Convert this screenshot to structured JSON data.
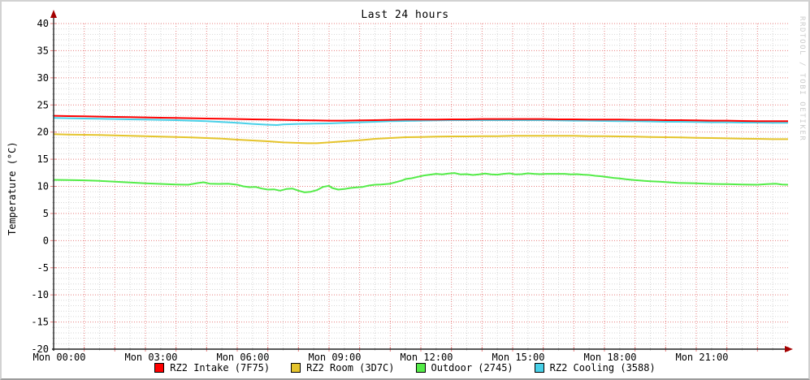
{
  "title": "Last 24 hours",
  "ylabel": "Temperature (°C)",
  "watermark": "RRDTOOL / TOBI OETIKER",
  "colors": {
    "intake": "#ff0000",
    "room": "#e5c42c",
    "outdoor": "#54ec48",
    "cooling": "#48d0e8",
    "grid_major": "#e87f7f",
    "grid_minor": "#d6d6d6",
    "axis": "#222222",
    "arrow": "#a40000",
    "watermark_gray": "#cccccc"
  },
  "chart_data": {
    "type": "line",
    "title": "Last 24 hours",
    "xlabel": "",
    "ylabel": "Temperature (°C)",
    "ylim": [
      -20,
      40
    ],
    "xlim_hours": [
      0,
      24
    ],
    "y_ticks": [
      40,
      35,
      30,
      25,
      20,
      15,
      10,
      5,
      0,
      -5,
      -10,
      -15,
      -20
    ],
    "x_tick_hours": [
      0,
      3,
      6,
      9,
      12,
      15,
      18,
      21
    ],
    "x_tick_labels": [
      "Mon 00:00",
      "Mon 03:00",
      "Mon 06:00",
      "Mon 09:00",
      "Mon 12:00",
      "Mon 15:00",
      "Mon 18:00",
      "Mon 21:00"
    ],
    "grid": {
      "major_x_hours": 1,
      "minor_x_hours": 0.5,
      "major_y": 5,
      "minor_y": 1,
      "style": "dotted",
      "legend_position": "bottom"
    },
    "series": [
      {
        "name": "Outdoor (2745)",
        "color": "#54ec48",
        "points": [
          [
            0,
            11.2
          ],
          [
            0.5,
            11.15
          ],
          [
            1,
            11.1
          ],
          [
            1.5,
            11.0
          ],
          [
            2,
            10.85
          ],
          [
            2.5,
            10.7
          ],
          [
            3,
            10.55
          ],
          [
            3.5,
            10.45
          ],
          [
            4,
            10.35
          ],
          [
            4.4,
            10.3
          ],
          [
            4.7,
            10.6
          ],
          [
            4.9,
            10.75
          ],
          [
            5.1,
            10.5
          ],
          [
            5.4,
            10.45
          ],
          [
            5.7,
            10.5
          ],
          [
            6,
            10.3
          ],
          [
            6.2,
            10.0
          ],
          [
            6.4,
            9.85
          ],
          [
            6.6,
            9.9
          ],
          [
            6.8,
            9.6
          ],
          [
            7,
            9.4
          ],
          [
            7.2,
            9.45
          ],
          [
            7.4,
            9.2
          ],
          [
            7.6,
            9.5
          ],
          [
            7.8,
            9.6
          ],
          [
            8,
            9.2
          ],
          [
            8.2,
            8.9
          ],
          [
            8.4,
            9.0
          ],
          [
            8.6,
            9.3
          ],
          [
            8.8,
            9.9
          ],
          [
            9,
            10.1
          ],
          [
            9.1,
            9.7
          ],
          [
            9.3,
            9.4
          ],
          [
            9.5,
            9.5
          ],
          [
            9.7,
            9.7
          ],
          [
            9.9,
            9.8
          ],
          [
            10.1,
            9.9
          ],
          [
            10.3,
            10.15
          ],
          [
            10.5,
            10.3
          ],
          [
            10.7,
            10.35
          ],
          [
            11,
            10.5
          ],
          [
            11.2,
            10.8
          ],
          [
            11.4,
            11.1
          ],
          [
            11.5,
            11.35
          ],
          [
            11.7,
            11.5
          ],
          [
            11.9,
            11.75
          ],
          [
            12.1,
            12.0
          ],
          [
            12.3,
            12.15
          ],
          [
            12.5,
            12.3
          ],
          [
            12.7,
            12.2
          ],
          [
            12.9,
            12.35
          ],
          [
            13.1,
            12.45
          ],
          [
            13.3,
            12.2
          ],
          [
            13.5,
            12.25
          ],
          [
            13.7,
            12.1
          ],
          [
            13.9,
            12.2
          ],
          [
            14.1,
            12.35
          ],
          [
            14.3,
            12.2
          ],
          [
            14.5,
            12.15
          ],
          [
            14.7,
            12.3
          ],
          [
            14.9,
            12.4
          ],
          [
            15.1,
            12.2
          ],
          [
            15.3,
            12.25
          ],
          [
            15.5,
            12.4
          ],
          [
            15.7,
            12.3
          ],
          [
            15.9,
            12.25
          ],
          [
            16.1,
            12.3
          ],
          [
            16.4,
            12.3
          ],
          [
            16.7,
            12.3
          ],
          [
            16.9,
            12.2
          ],
          [
            17.1,
            12.25
          ],
          [
            17.3,
            12.15
          ],
          [
            17.5,
            12.1
          ],
          [
            17.7,
            11.95
          ],
          [
            17.9,
            11.85
          ],
          [
            18.1,
            11.7
          ],
          [
            18.3,
            11.55
          ],
          [
            18.5,
            11.45
          ],
          [
            18.7,
            11.3
          ],
          [
            18.9,
            11.2
          ],
          [
            19.1,
            11.1
          ],
          [
            19.3,
            11.0
          ],
          [
            19.5,
            10.95
          ],
          [
            19.8,
            10.85
          ],
          [
            20.1,
            10.75
          ],
          [
            20.4,
            10.65
          ],
          [
            20.7,
            10.6
          ],
          [
            21,
            10.55
          ],
          [
            21.5,
            10.45
          ],
          [
            22,
            10.4
          ],
          [
            22.5,
            10.35
          ],
          [
            23,
            10.3
          ],
          [
            23.3,
            10.4
          ],
          [
            23.6,
            10.5
          ],
          [
            23.8,
            10.35
          ],
          [
            24,
            10.3
          ]
        ]
      },
      {
        "name": "RZ2 Room (3D7C)",
        "color": "#e5c42c",
        "points": [
          [
            0,
            19.6
          ],
          [
            0.5,
            19.55
          ],
          [
            1,
            19.5
          ],
          [
            1.5,
            19.45
          ],
          [
            2,
            19.4
          ],
          [
            2.5,
            19.3
          ],
          [
            3,
            19.25
          ],
          [
            3.5,
            19.15
          ],
          [
            4,
            19.1
          ],
          [
            4.5,
            19.0
          ],
          [
            5,
            18.9
          ],
          [
            5.5,
            18.8
          ],
          [
            6,
            18.6
          ],
          [
            6.5,
            18.45
          ],
          [
            7,
            18.3
          ],
          [
            7.5,
            18.1
          ],
          [
            8,
            18.0
          ],
          [
            8.3,
            17.95
          ],
          [
            8.6,
            17.95
          ],
          [
            9,
            18.1
          ],
          [
            9.5,
            18.3
          ],
          [
            10,
            18.5
          ],
          [
            10.5,
            18.75
          ],
          [
            11,
            18.9
          ],
          [
            11.5,
            19.05
          ],
          [
            12,
            19.1
          ],
          [
            12.5,
            19.15
          ],
          [
            13,
            19.2
          ],
          [
            13.5,
            19.2
          ],
          [
            14,
            19.25
          ],
          [
            14.5,
            19.25
          ],
          [
            15,
            19.3
          ],
          [
            15.5,
            19.3
          ],
          [
            16,
            19.3
          ],
          [
            16.5,
            19.3
          ],
          [
            17,
            19.3
          ],
          [
            17.5,
            19.25
          ],
          [
            18,
            19.25
          ],
          [
            18.5,
            19.2
          ],
          [
            19,
            19.15
          ],
          [
            19.5,
            19.1
          ],
          [
            20,
            19.05
          ],
          [
            20.5,
            19.0
          ],
          [
            21,
            18.95
          ],
          [
            21.5,
            18.9
          ],
          [
            22,
            18.85
          ],
          [
            22.5,
            18.8
          ],
          [
            23,
            18.75
          ],
          [
            23.5,
            18.7
          ],
          [
            24,
            18.7
          ]
        ]
      },
      {
        "name": "RZ2 Cooling (3588)",
        "color": "#48d0e8",
        "points": [
          [
            0,
            22.6
          ],
          [
            0.5,
            22.55
          ],
          [
            1,
            22.5
          ],
          [
            1.5,
            22.45
          ],
          [
            2,
            22.4
          ],
          [
            2.5,
            22.35
          ],
          [
            3,
            22.3
          ],
          [
            3.5,
            22.25
          ],
          [
            4,
            22.2
          ],
          [
            4.5,
            22.1
          ],
          [
            5,
            22.0
          ],
          [
            5.5,
            21.85
          ],
          [
            6,
            21.7
          ],
          [
            6.5,
            21.5
          ],
          [
            7,
            21.35
          ],
          [
            7.3,
            21.3
          ],
          [
            7.5,
            21.4
          ],
          [
            8,
            21.5
          ],
          [
            8.5,
            21.55
          ],
          [
            9,
            21.6
          ],
          [
            9.5,
            21.7
          ],
          [
            10,
            21.8
          ],
          [
            10.5,
            21.9
          ],
          [
            11,
            22.0
          ],
          [
            11.5,
            22.05
          ],
          [
            12,
            22.1
          ],
          [
            12.5,
            22.15
          ],
          [
            13,
            22.2
          ],
          [
            13.5,
            22.2
          ],
          [
            14,
            22.2
          ],
          [
            14.5,
            22.2
          ],
          [
            15,
            22.2
          ],
          [
            15.5,
            22.2
          ],
          [
            16,
            22.2
          ],
          [
            16.5,
            22.15
          ],
          [
            17,
            22.1
          ],
          [
            17.5,
            22.1
          ],
          [
            18,
            22.05
          ],
          [
            18.5,
            22.0
          ],
          [
            19,
            22.0
          ],
          [
            19.5,
            21.95
          ],
          [
            20,
            21.9
          ],
          [
            20.5,
            21.9
          ],
          [
            21,
            21.85
          ],
          [
            21.5,
            21.8
          ],
          [
            22,
            21.8
          ],
          [
            22.5,
            21.75
          ],
          [
            23,
            21.75
          ],
          [
            23.5,
            21.7
          ],
          [
            24,
            21.7
          ]
        ]
      },
      {
        "name": "RZ2 Intake (7F75)",
        "color": "#ff0000",
        "points": [
          [
            0,
            23.0
          ],
          [
            0.5,
            22.95
          ],
          [
            1,
            22.9
          ],
          [
            1.5,
            22.85
          ],
          [
            2,
            22.8
          ],
          [
            2.5,
            22.75
          ],
          [
            3,
            22.7
          ],
          [
            3.5,
            22.65
          ],
          [
            4,
            22.6
          ],
          [
            4.5,
            22.55
          ],
          [
            5,
            22.5
          ],
          [
            5.5,
            22.45
          ],
          [
            6,
            22.4
          ],
          [
            6.5,
            22.35
          ],
          [
            7,
            22.3
          ],
          [
            7.5,
            22.25
          ],
          [
            8,
            22.2
          ],
          [
            8.5,
            22.15
          ],
          [
            9,
            22.1
          ],
          [
            9.5,
            22.1
          ],
          [
            10,
            22.15
          ],
          [
            10.5,
            22.2
          ],
          [
            11,
            22.25
          ],
          [
            11.5,
            22.3
          ],
          [
            12,
            22.3
          ],
          [
            12.5,
            22.3
          ],
          [
            13,
            22.35
          ],
          [
            13.5,
            22.35
          ],
          [
            14,
            22.4
          ],
          [
            14.5,
            22.4
          ],
          [
            15,
            22.4
          ],
          [
            15.5,
            22.4
          ],
          [
            16,
            22.4
          ],
          [
            16.5,
            22.35
          ],
          [
            17,
            22.35
          ],
          [
            17.5,
            22.3
          ],
          [
            18,
            22.3
          ],
          [
            18.5,
            22.3
          ],
          [
            19,
            22.25
          ],
          [
            19.5,
            22.25
          ],
          [
            20,
            22.2
          ],
          [
            20.5,
            22.2
          ],
          [
            21,
            22.15
          ],
          [
            21.5,
            22.1
          ],
          [
            22,
            22.1
          ],
          [
            22.5,
            22.05
          ],
          [
            23,
            22.0
          ],
          [
            23.5,
            22.0
          ],
          [
            24,
            22.0
          ]
        ]
      }
    ],
    "legend_order": [
      "RZ2 Intake (7F75)",
      "RZ2 Room (3D7C)",
      "Outdoor (2745)",
      "RZ2 Cooling (3588)"
    ]
  }
}
